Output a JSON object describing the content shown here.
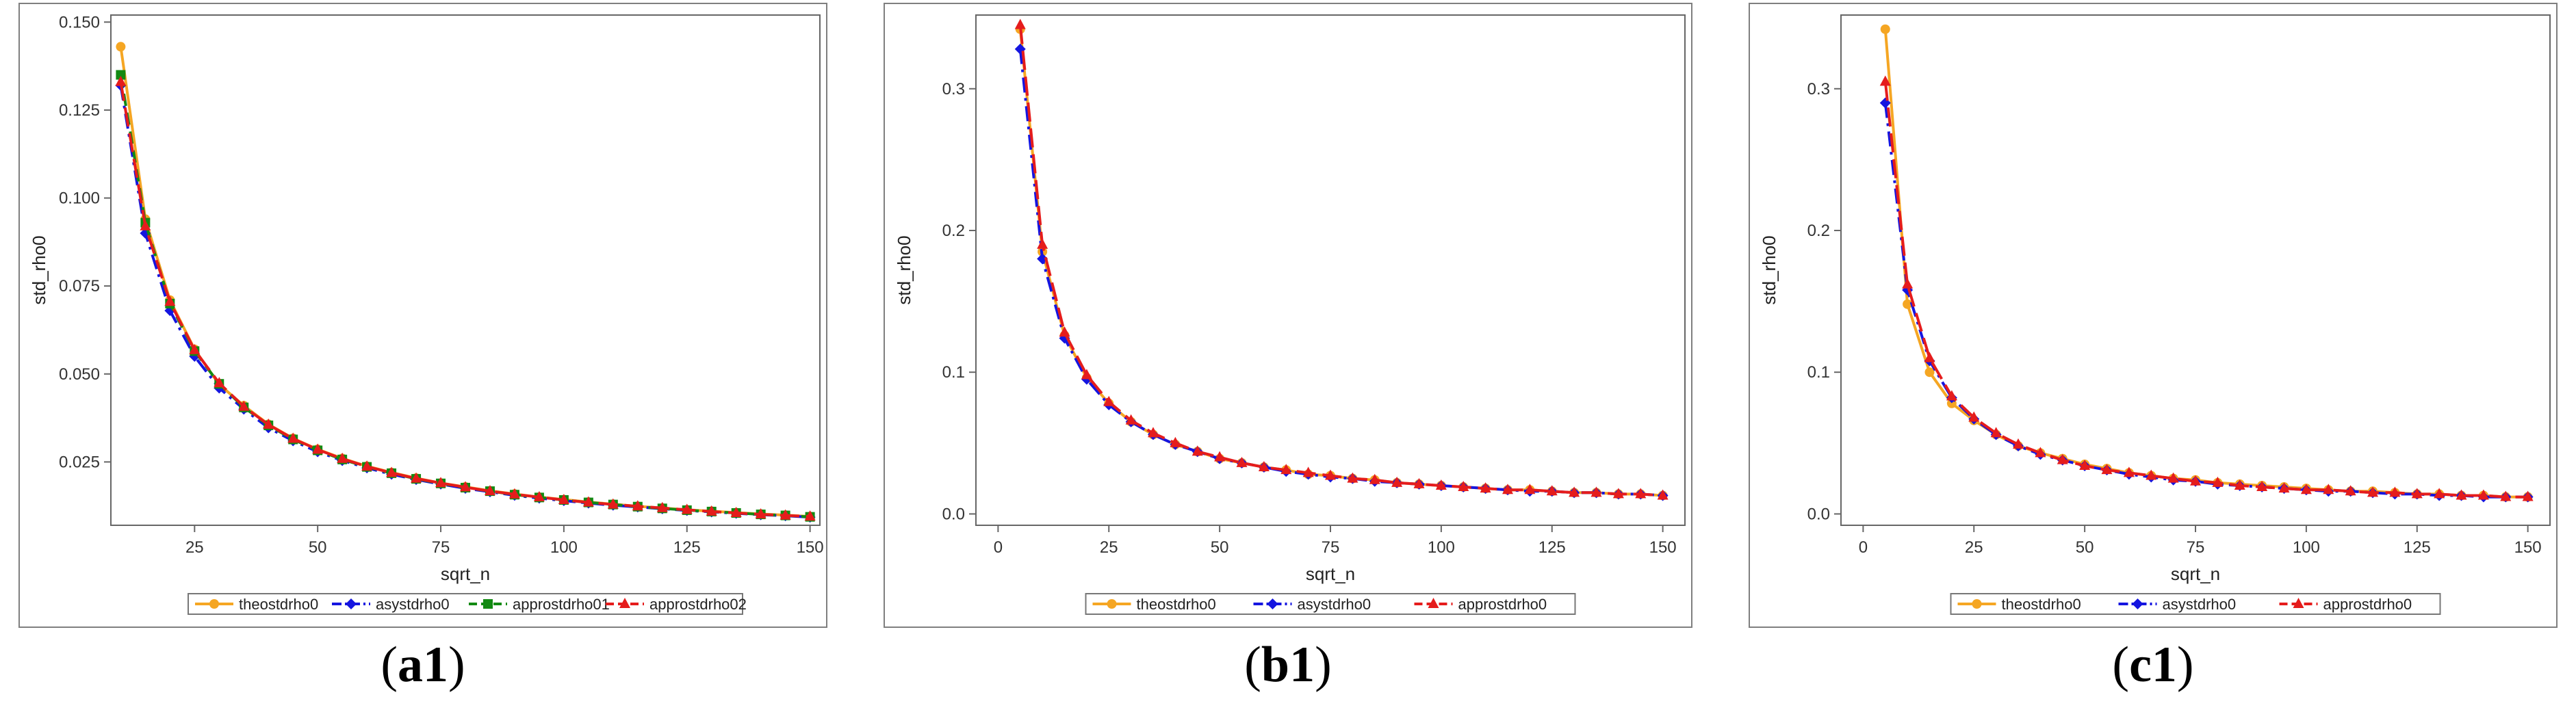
{
  "colors": {
    "theo": "#F5A623",
    "asy": "#1515E0",
    "appro1": "#138A13",
    "appro2": "#E51C1C",
    "frame": "#7F7F7F"
  },
  "chart_data": [
    {
      "type": "line",
      "panel_label": "a1",
      "xlabel": "sqrt_n",
      "ylabel": "std_rho0",
      "xlim": [
        8,
        152
      ],
      "ylim": [
        0.007,
        0.152
      ],
      "xticks": [
        25,
        50,
        75,
        100,
        125,
        150
      ],
      "yticks": [
        0.025,
        0.05,
        0.075,
        0.1,
        0.125,
        0.15
      ],
      "ytick_labels": [
        "0.025",
        "0.050",
        "0.075",
        "0.100",
        "0.125",
        "0.150"
      ],
      "grid": false,
      "legend_position": "bottom",
      "x": [
        10,
        15,
        20,
        25,
        30,
        35,
        40,
        45,
        50,
        55,
        60,
        65,
        70,
        75,
        80,
        85,
        90,
        95,
        100,
        105,
        110,
        115,
        120,
        125,
        130,
        135,
        140,
        145,
        150
      ],
      "series": [
        {
          "name": "theostdrho0",
          "color_key": "theo",
          "marker": "circle",
          "dash": "solid",
          "values": [
            0.143,
            0.094,
            0.071,
            0.057,
            0.047,
            0.041,
            0.0357,
            0.0317,
            0.0286,
            0.026,
            0.0238,
            0.022,
            0.0204,
            0.019,
            0.0179,
            0.0168,
            0.0159,
            0.015,
            0.0143,
            0.0136,
            0.013,
            0.0124,
            0.0119,
            0.0114,
            0.011,
            0.0106,
            0.0102,
            0.0099,
            0.0095
          ]
        },
        {
          "name": "asystdrho0",
          "color_key": "asy",
          "marker": "diamond",
          "dash": "dashdot",
          "values": [
            0.132,
            0.09,
            0.068,
            0.055,
            0.046,
            0.04,
            0.0347,
            0.031,
            0.0279,
            0.0254,
            0.0233,
            0.0215,
            0.02,
            0.0187,
            0.0175,
            0.0165,
            0.0155,
            0.0147,
            0.014,
            0.0133,
            0.0127,
            0.0122,
            0.0117,
            0.0112,
            0.0108,
            0.0104,
            0.01,
            0.0097,
            0.0093
          ]
        },
        {
          "name": "approstdrho01",
          "color_key": "appro1",
          "marker": "square",
          "dash": "dash",
          "values": [
            0.135,
            0.093,
            0.07,
            0.0565,
            0.0472,
            0.0405,
            0.0354,
            0.0314,
            0.0283,
            0.0257,
            0.0236,
            0.0218,
            0.0202,
            0.0189,
            0.0177,
            0.0167,
            0.0157,
            0.0149,
            0.0142,
            0.0135,
            0.0129,
            0.0123,
            0.0118,
            0.0113,
            0.0109,
            0.0105,
            0.0101,
            0.0098,
            0.0094
          ]
        },
        {
          "name": "approstdrho02",
          "color_key": "appro2",
          "marker": "triangle",
          "dash": "longdash",
          "values": [
            0.133,
            0.092,
            0.0705,
            0.0568,
            0.0474,
            0.0407,
            0.0356,
            0.0316,
            0.0285,
            0.0259,
            0.0237,
            0.0219,
            0.0203,
            0.019,
            0.0178,
            0.0167,
            0.0158,
            0.015,
            0.0142,
            0.0135,
            0.0129,
            0.0124,
            0.0119,
            0.0114,
            0.0109,
            0.0105,
            0.0101,
            0.0098,
            0.0095
          ]
        }
      ]
    },
    {
      "type": "line",
      "panel_label": "b1",
      "xlabel": "sqrt_n",
      "ylabel": "std_rho0",
      "xlim": [
        -5,
        155
      ],
      "ylim": [
        -0.008,
        0.352
      ],
      "xticks": [
        0,
        25,
        50,
        75,
        100,
        125,
        150
      ],
      "yticks": [
        0.0,
        0.1,
        0.2,
        0.3
      ],
      "ytick_labels": [
        "0.0",
        "0.1",
        "0.2",
        "0.3"
      ],
      "grid": false,
      "legend_position": "bottom",
      "x": [
        5,
        10,
        15,
        20,
        25,
        30,
        35,
        40,
        45,
        50,
        55,
        60,
        65,
        70,
        75,
        80,
        85,
        90,
        95,
        100,
        105,
        110,
        115,
        120,
        125,
        130,
        135,
        140,
        145,
        150
      ],
      "series": [
        {
          "name": "theostdrho0",
          "color_key": "theo",
          "marker": "circle",
          "dash": "solid",
          "values": [
            0.342,
            0.185,
            0.126,
            0.096,
            0.078,
            0.065,
            0.056,
            0.049,
            0.044,
            0.039,
            0.036,
            0.033,
            0.031,
            0.028,
            0.027,
            0.025,
            0.024,
            0.022,
            0.021,
            0.02,
            0.019,
            0.018,
            0.017,
            0.017,
            0.016,
            0.015,
            0.015,
            0.014,
            0.014,
            0.013
          ]
        },
        {
          "name": "asystdrho0",
          "color_key": "asy",
          "marker": "diamond",
          "dash": "dashdot",
          "values": [
            0.328,
            0.18,
            0.124,
            0.095,
            0.077,
            0.065,
            0.056,
            0.049,
            0.044,
            0.039,
            0.036,
            0.033,
            0.03,
            0.028,
            0.026,
            0.025,
            0.023,
            0.022,
            0.021,
            0.02,
            0.019,
            0.018,
            0.017,
            0.016,
            0.016,
            0.015,
            0.015,
            0.014,
            0.014,
            0.013
          ]
        },
        {
          "name": "approstdrho0",
          "color_key": "appro2",
          "marker": "triangle",
          "dash": "longdash",
          "values": [
            0.345,
            0.19,
            0.128,
            0.098,
            0.079,
            0.066,
            0.057,
            0.05,
            0.044,
            0.04,
            0.036,
            0.033,
            0.031,
            0.029,
            0.027,
            0.025,
            0.024,
            0.022,
            0.021,
            0.02,
            0.019,
            0.018,
            0.017,
            0.017,
            0.016,
            0.015,
            0.015,
            0.014,
            0.014,
            0.013
          ]
        }
      ]
    },
    {
      "type": "line",
      "panel_label": "c1",
      "xlabel": "sqrt_n",
      "ylabel": "std_rho0",
      "xlim": [
        -5,
        155
      ],
      "ylim": [
        -0.008,
        0.352
      ],
      "xticks": [
        0,
        25,
        50,
        75,
        100,
        125,
        150
      ],
      "yticks": [
        0.0,
        0.1,
        0.2,
        0.3
      ],
      "ytick_labels": [
        "0.0",
        "0.1",
        "0.2",
        "0.3"
      ],
      "grid": false,
      "legend_position": "bottom",
      "x": [
        5,
        10,
        15,
        20,
        25,
        30,
        35,
        40,
        45,
        50,
        55,
        60,
        65,
        70,
        75,
        80,
        85,
        90,
        95,
        100,
        105,
        110,
        115,
        120,
        125,
        130,
        135,
        140,
        145,
        150
      ],
      "series": [
        {
          "name": "theostdrho0",
          "color_key": "theo",
          "marker": "circle",
          "dash": "solid",
          "values": [
            0.342,
            0.148,
            0.1,
            0.078,
            0.066,
            0.056,
            0.048,
            0.043,
            0.039,
            0.035,
            0.032,
            0.029,
            0.027,
            0.025,
            0.024,
            0.022,
            0.021,
            0.02,
            0.019,
            0.018,
            0.017,
            0.016,
            0.016,
            0.015,
            0.014,
            0.014,
            0.013,
            0.013,
            0.012,
            0.012
          ]
        },
        {
          "name": "asystdrho0",
          "color_key": "asy",
          "marker": "diamond",
          "dash": "dashdot",
          "values": [
            0.29,
            0.158,
            0.108,
            0.082,
            0.067,
            0.056,
            0.048,
            0.042,
            0.038,
            0.034,
            0.031,
            0.028,
            0.026,
            0.024,
            0.023,
            0.021,
            0.02,
            0.019,
            0.018,
            0.017,
            0.016,
            0.016,
            0.015,
            0.014,
            0.014,
            0.013,
            0.013,
            0.012,
            0.012,
            0.012
          ]
        },
        {
          "name": "approstdrho0",
          "color_key": "appro2",
          "marker": "triangle",
          "dash": "longdash",
          "values": [
            0.305,
            0.162,
            0.11,
            0.083,
            0.068,
            0.057,
            0.049,
            0.043,
            0.038,
            0.034,
            0.031,
            0.029,
            0.027,
            0.025,
            0.023,
            0.022,
            0.02,
            0.019,
            0.018,
            0.017,
            0.017,
            0.016,
            0.015,
            0.015,
            0.014,
            0.014,
            0.013,
            0.013,
            0.012,
            0.012
          ]
        }
      ]
    }
  ]
}
